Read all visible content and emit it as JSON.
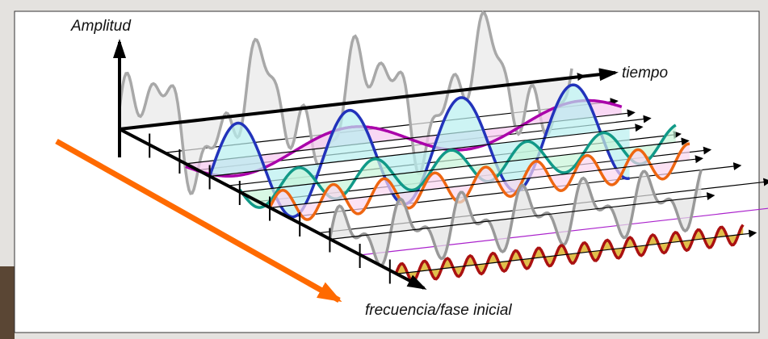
{
  "labels": {
    "amplitude": "Amplitud",
    "time": "tiempo",
    "frequency": "frecuencia/fase inicial"
  }
}
